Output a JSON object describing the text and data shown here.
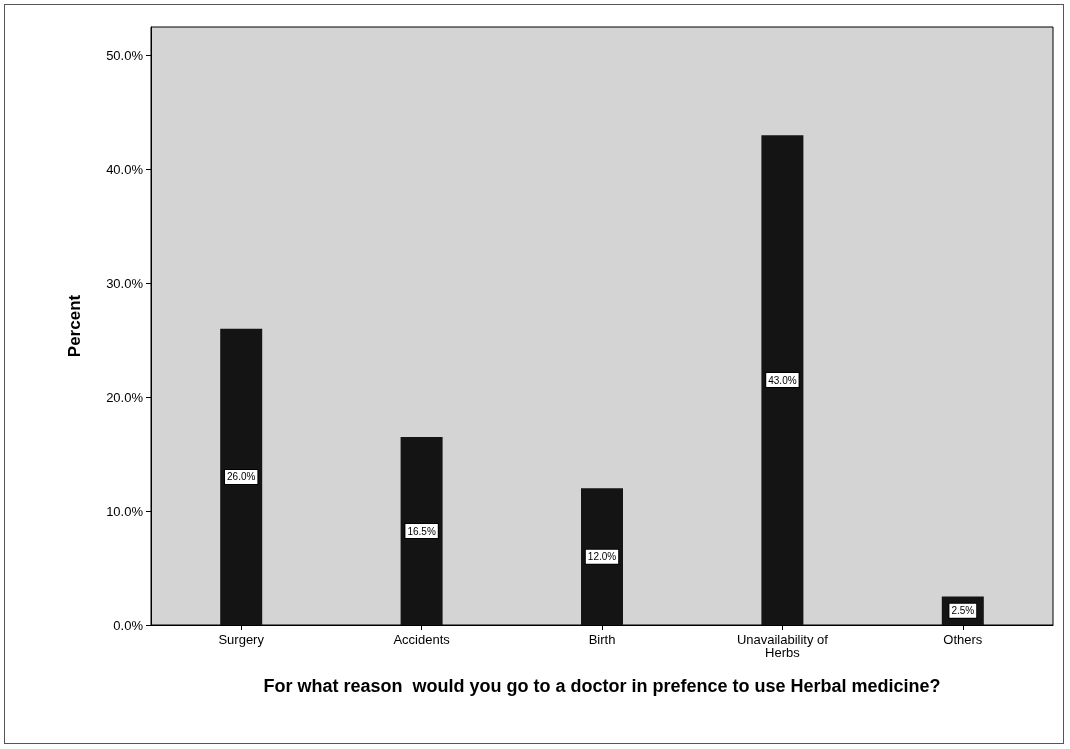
{
  "chart_data": {
    "type": "bar",
    "xlabel": "For what reason  would you go to a doctor in prefence to use Herbal medicine?",
    "ylabel": "Percent",
    "categories": [
      "Surgery",
      "Accidents",
      "Birth",
      "Unavailability of Herbs",
      "Others"
    ],
    "values": [
      26.0,
      16.5,
      12.0,
      43.0,
      2.5
    ],
    "value_labels": [
      "26.0%",
      "16.5%",
      "12.0%",
      "43.0%",
      "2.5%"
    ],
    "color": "#141414",
    "ylim": [
      0,
      52.5
    ],
    "yticks": [
      {
        "value": 0,
        "label": "0.0%"
      },
      {
        "value": 10,
        "label": "10.0%"
      },
      {
        "value": 20,
        "label": "20.0%"
      },
      {
        "value": 30,
        "label": "30.0%"
      },
      {
        "value": 40,
        "label": "40.0%"
      },
      {
        "value": 50,
        "label": "50.0%"
      }
    ],
    "grid": false
  }
}
